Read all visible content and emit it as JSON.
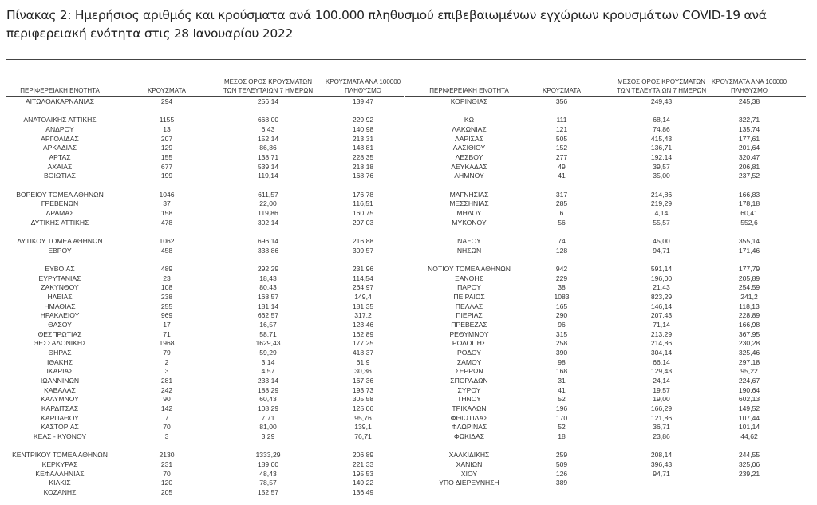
{
  "title": "Πίνακας 2: Ημερήσιος αριθμός και κρούσματα ανά 100.000 πληθυσμού επιβεβαιωμένων εγχώριων κρουσμάτων COVID-19 ανά περιφερειακή ενότητα στις 28 Ιανουαρίου 2022",
  "headers": {
    "region": "ΠΕΡΙΦΕΡΕΙΑΚΗ ΕΝΟΤΗΤΑ",
    "cases": "ΚΡΟΥΣΜΑΤΑ",
    "avg_line1": "ΜΕΣΟΣ ΟΡΟΣ ΚΡΟΥΣΜΑΤΩΝ",
    "avg_line2": "ΤΩΝ ΤΕΛΕΥΤΑΙΩΝ 7 ΗΜΕΡΩΝ",
    "per100k_line1": "ΚΡΟΥΣΜΑΤΑ ΑΝΑ 100000",
    "per100k_line2": "ΠΛΗΘΥΣΜΟ"
  },
  "left_rows": [
    [
      "ΑΙΤΩΛΟΑΚΑΡΝΑΝΙΑΣ",
      "294",
      "256,14",
      "139,47"
    ],
    null,
    [
      "ΑΝΑΤΟΛΙΚΗΣ ΑΤΤΙΚΗΣ",
      "1155",
      "668,00",
      "229,92"
    ],
    [
      "ΑΝΔΡΟΥ",
      "13",
      "6,43",
      "140,98"
    ],
    [
      "ΑΡΓΟΛΙΔΑΣ",
      "207",
      "152,14",
      "213,31"
    ],
    [
      "ΑΡΚΑΔΙΑΣ",
      "129",
      "86,86",
      "148,81"
    ],
    [
      "ΑΡΤΑΣ",
      "155",
      "138,71",
      "228,35"
    ],
    [
      "ΑΧΑΪΑΣ",
      "677",
      "539,14",
      "218,18"
    ],
    [
      "ΒΟΙΩΤΙΑΣ",
      "199",
      "119,14",
      "168,76"
    ],
    null,
    [
      "ΒΟΡΕΙΟΥ ΤΟΜΕΑ ΑΘΗΝΩΝ",
      "1046",
      "611,57",
      "176,78"
    ],
    [
      "ΓΡΕΒΕΝΩΝ",
      "37",
      "22,00",
      "116,51"
    ],
    [
      "ΔΡΑΜΑΣ",
      "158",
      "119,86",
      "160,75"
    ],
    [
      "ΔΥΤΙΚΗΣ ΑΤΤΙΚΗΣ",
      "478",
      "302,14",
      "297,03"
    ],
    null,
    [
      "ΔΥΤΙΚΟΥ ΤΟΜΕΑ ΑΘΗΝΩΝ",
      "1062",
      "696,14",
      "216,88"
    ],
    [
      "ΕΒΡΟΥ",
      "458",
      "338,86",
      "309,57"
    ],
    null,
    [
      "ΕΥΒΟΙΑΣ",
      "489",
      "292,29",
      "231,96"
    ],
    [
      "ΕΥΡΥΤΑΝΙΑΣ",
      "23",
      "18,43",
      "114,54"
    ],
    [
      "ΖΑΚΥΝΘΟΥ",
      "108",
      "80,43",
      "264,97"
    ],
    [
      "ΗΛΕΙΑΣ",
      "238",
      "168,57",
      "149,4"
    ],
    [
      "ΗΜΑΘΙΑΣ",
      "255",
      "181,14",
      "181,35"
    ],
    [
      "ΗΡΑΚΛΕΙΟΥ",
      "969",
      "662,57",
      "317,2"
    ],
    [
      "ΘΑΣΟΥ",
      "17",
      "16,57",
      "123,46"
    ],
    [
      "ΘΕΣΠΡΩΤΙΑΣ",
      "71",
      "58,71",
      "162,89"
    ],
    [
      "ΘΕΣΣΑΛΟΝΙΚΗΣ",
      "1968",
      "1629,43",
      "177,25"
    ],
    [
      "ΘΗΡΑΣ",
      "79",
      "59,29",
      "418,37"
    ],
    [
      "ΙΘΑΚΗΣ",
      "2",
      "3,14",
      "61,9"
    ],
    [
      "ΙΚΑΡΙΑΣ",
      "3",
      "4,57",
      "30,36"
    ],
    [
      "ΙΩΑΝΝΙΝΩΝ",
      "281",
      "233,14",
      "167,36"
    ],
    [
      "ΚΑΒΑΛΑΣ",
      "242",
      "188,29",
      "193,73"
    ],
    [
      "ΚΑΛΥΜΝΟΥ",
      "90",
      "60,43",
      "305,58"
    ],
    [
      "ΚΑΡΔΙΤΣΑΣ",
      "142",
      "108,29",
      "125,06"
    ],
    [
      "ΚΑΡΠΑΘΟΥ",
      "7",
      "7,71",
      "95,76"
    ],
    [
      "ΚΑΣΤΟΡΙΑΣ",
      "70",
      "81,00",
      "139,1"
    ],
    [
      "ΚΕΑΣ - ΚΥΘΝΟΥ",
      "3",
      "3,29",
      "76,71"
    ],
    null,
    [
      "ΚΕΝΤΡΙΚΟΥ ΤΟΜΕΑ ΑΘΗΝΩΝ",
      "2130",
      "1333,29",
      "206,89"
    ],
    [
      "ΚΕΡΚΥΡΑΣ",
      "231",
      "189,00",
      "221,33"
    ],
    [
      "ΚΕΦΑΛΛΗΝΙΑΣ",
      "70",
      "48,43",
      "195,53"
    ],
    [
      "ΚΙΛΚΙΣ",
      "120",
      "78,57",
      "149,22"
    ],
    [
      "ΚΟΖΑΝΗΣ",
      "205",
      "152,57",
      "136,49"
    ]
  ],
  "right_rows": [
    [
      "ΚΟΡΙΝΘΙΑΣ",
      "356",
      "249,43",
      "245,38"
    ],
    null,
    [
      "ΚΩ",
      "111",
      "68,14",
      "322,71"
    ],
    [
      "ΛΑΚΩΝΙΑΣ",
      "121",
      "74,86",
      "135,74"
    ],
    [
      "ΛΑΡΙΣΑΣ",
      "505",
      "415,43",
      "177,61"
    ],
    [
      "ΛΑΣΙΘΙΟΥ",
      "152",
      "136,71",
      "201,64"
    ],
    [
      "ΛΕΣΒΟΥ",
      "277",
      "192,14",
      "320,47"
    ],
    [
      "ΛΕΥΚΑΔΑΣ",
      "49",
      "39,57",
      "206,81"
    ],
    [
      "ΛΗΜΝΟΥ",
      "41",
      "35,00",
      "237,52"
    ],
    null,
    [
      "ΜΑΓΝΗΣΙΑΣ",
      "317",
      "214,86",
      "166,83"
    ],
    [
      "ΜΕΣΣΗΝΙΑΣ",
      "285",
      "219,29",
      "178,18"
    ],
    [
      "ΜΗΛΟΥ",
      "6",
      "4,14",
      "60,41"
    ],
    [
      "ΜΥΚΟΝΟΥ",
      "56",
      "55,57",
      "552,6"
    ],
    null,
    [
      "ΝΑΞΟΥ",
      "74",
      "45,00",
      "355,14"
    ],
    [
      "ΝΗΣΩΝ",
      "128",
      "94,71",
      "171,46"
    ],
    null,
    [
      "ΝΟΤΙΟΥ ΤΟΜΕΑ ΑΘΗΝΩΝ",
      "942",
      "591,14",
      "177,79"
    ],
    [
      "ΞΑΝΘΗΣ",
      "229",
      "196,00",
      "205,89"
    ],
    [
      "ΠΑΡΟΥ",
      "38",
      "21,43",
      "254,59"
    ],
    [
      "ΠΕΙΡΑΙΩΣ",
      "1083",
      "823,29",
      "241,2"
    ],
    [
      "ΠΕΛΛΑΣ",
      "165",
      "146,14",
      "118,13"
    ],
    [
      "ΠΙΕΡΙΑΣ",
      "290",
      "207,43",
      "228,89"
    ],
    [
      "ΠΡΕΒΕΖΑΣ",
      "96",
      "71,14",
      "166,98"
    ],
    [
      "ΡΕΘΥΜΝΟΥ",
      "315",
      "213,29",
      "367,95"
    ],
    [
      "ΡΟΔΟΠΗΣ",
      "258",
      "214,86",
      "230,28"
    ],
    [
      "ΡΟΔΟΥ",
      "390",
      "304,14",
      "325,46"
    ],
    [
      "ΣΑΜΟΥ",
      "98",
      "66,14",
      "297,18"
    ],
    [
      "ΣΕΡΡΩΝ",
      "168",
      "129,43",
      "95,22"
    ],
    [
      "ΣΠΟΡΑΔΩΝ",
      "31",
      "24,14",
      "224,67"
    ],
    [
      "ΣΥΡΟΥ",
      "41",
      "19,57",
      "190,64"
    ],
    [
      "ΤΗΝΟΥ",
      "52",
      "19,00",
      "602,13"
    ],
    [
      "ΤΡΙΚΑΛΩΝ",
      "196",
      "166,29",
      "149,52"
    ],
    [
      "ΦΘΙΩΤΙΔΑΣ",
      "170",
      "121,86",
      "107,44"
    ],
    [
      "ΦΛΩΡΙΝΑΣ",
      "52",
      "36,71",
      "101,14"
    ],
    [
      "ΦΩΚΙΔΑΣ",
      "18",
      "23,86",
      "44,62"
    ],
    null,
    [
      "ΧΑΛΚΙΔΙΚΗΣ",
      "259",
      "208,14",
      "244,55"
    ],
    [
      "ΧΑΝΙΩΝ",
      "509",
      "396,43",
      "325,06"
    ],
    [
      "ΧΙΟΥ",
      "126",
      "94,71",
      "239,21"
    ],
    [
      "ΥΠΟ ΔΙΕΡΕΥΝΗΣΗ",
      "389",
      "",
      ""
    ]
  ]
}
